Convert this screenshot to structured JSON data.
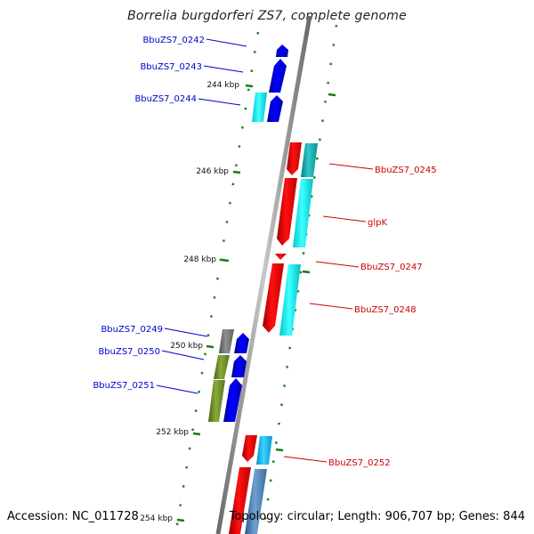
{
  "title": "Borrelia burgdorferi ZS7, complete genome",
  "footer": {
    "accession": "Accession: NC_011728",
    "topology": "Topology: circular; Length: 906,707 bp; Genes: 844"
  },
  "colors": {
    "backbone": "#8c8c8c",
    "tick": "#1a7a1a",
    "forward_label": "#0000cc",
    "reverse_label": "#cc0000",
    "forward_gene": "#0000ee",
    "reverse_gene": "#ee0000",
    "cds_cyan": "#00e8ee",
    "cds_teal": "#10b0b0",
    "cds_lightblue": "#12b8ee",
    "cds_olive": "#6b8e23",
    "cds_gray": "#707070",
    "cds_steel": "#4682b4"
  },
  "kbp_labels": [
    "244 kbp",
    "246 kbp",
    "248 kbp",
    "250 kbp",
    "252 kbp",
    "254 kbp"
  ],
  "genes": {
    "BbuZS7_0242": "BbuZS7_0242",
    "BbuZS7_0243": "BbuZS7_0243",
    "BbuZS7_0244": "BbuZS7_0244",
    "BbuZS7_0245": "BbuZS7_0245",
    "glpK": "glpK",
    "BbuZS7_0247": "BbuZS7_0247",
    "BbuZS7_0248": "BbuZS7_0248",
    "BbuZS7_0249": "BbuZS7_0249",
    "BbuZS7_0250": "BbuZS7_0250",
    "BbuZS7_0251": "BbuZS7_0251",
    "BbuZS7_0252": "BbuZS7_0252"
  }
}
